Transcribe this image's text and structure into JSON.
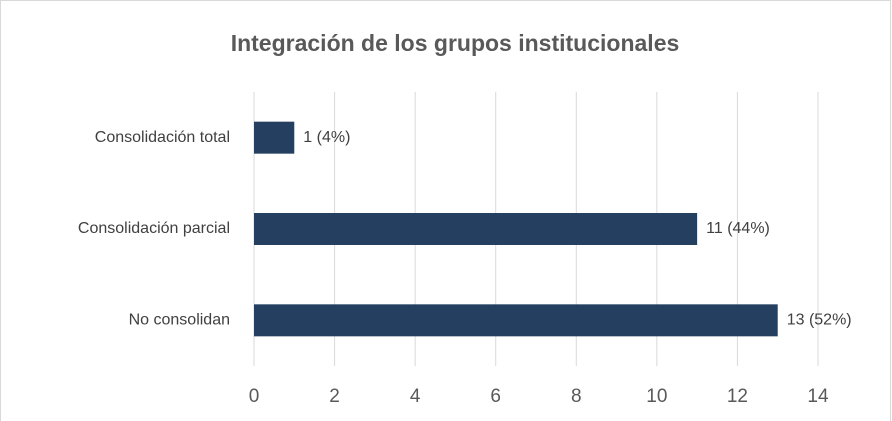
{
  "chart_data": {
    "type": "barh",
    "title": "Integración de los grupos institucionales",
    "categories": [
      "Consolidación total",
      "Consolidación parcial",
      "No consolidan"
    ],
    "values": [
      1,
      11,
      13
    ],
    "value_labels": [
      "1 (4%)",
      "11 (44%)",
      "13 (52%)"
    ],
    "color": "#243f60",
    "xlim": [
      0,
      14
    ],
    "xticks": [
      0,
      2,
      4,
      6,
      8,
      10,
      12,
      14
    ],
    "grid": true
  }
}
